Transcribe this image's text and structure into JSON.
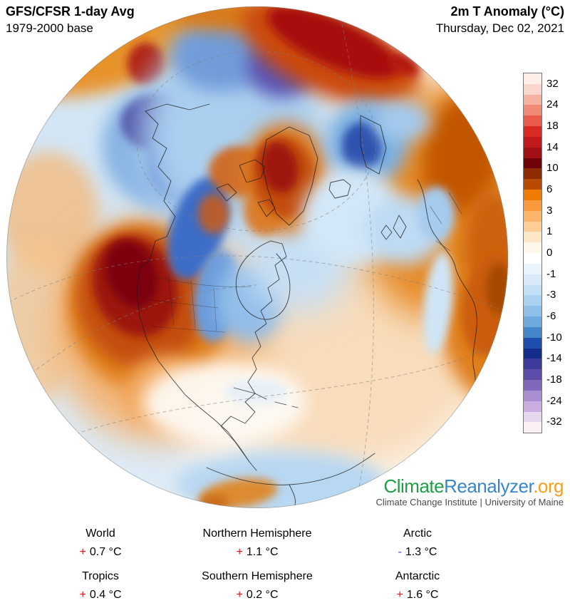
{
  "header": {
    "left_line1": "GFS/CFSR 1-day Avg",
    "left_line2": "1979-2000 base",
    "right_line1": "2m T Anomaly (°C)",
    "right_line2": "Thursday, Dec 02, 2021"
  },
  "colorbar": {
    "ticks": [
      "32",
      "24",
      "18",
      "14",
      "10",
      "6",
      "3",
      "1",
      "0",
      "-1",
      "-3",
      "-6",
      "-10",
      "-14",
      "-18",
      "-24",
      "-32"
    ],
    "colors": [
      "#fdeee8",
      "#f9d6cb",
      "#f5b2a3",
      "#f08a77",
      "#e85a49",
      "#d92b24",
      "#c21a1d",
      "#a01015",
      "#700309",
      "#8f2b03",
      "#b84a01",
      "#ef7b00",
      "#fb9a3c",
      "#fcb468",
      "#fdcd96",
      "#fde7c6",
      "#fef6e9",
      "#ffffff",
      "#eaf4fc",
      "#d8eafa",
      "#c3dff5",
      "#aad2f0",
      "#8fc0e9",
      "#6faade",
      "#4487cb",
      "#1e4fae",
      "#142c8c",
      "#3c3a9b",
      "#5d4da8",
      "#8168bb",
      "#a98fd0",
      "#c9ade1",
      "#e6d6ee",
      "#fbeff2"
    ]
  },
  "logo": {
    "part1": "Climate",
    "part2": "Reanalyzer",
    "part3": ".org",
    "color1": "#1f9e46",
    "color2": "#3a87c8",
    "color3": "#f6a01b",
    "subtitle": "Climate Change Institute | University of Maine"
  },
  "stats": {
    "items": [
      {
        "label": "World",
        "sign": "+",
        "value": "0.7 °C",
        "sign_color": "#e81111"
      },
      {
        "label": "Northern Hemisphere",
        "sign": "+",
        "value": "1.1 °C",
        "sign_color": "#e81111"
      },
      {
        "label": "Arctic",
        "sign": "-",
        "value": "1.3 °C",
        "sign_color": "#4f4fd8"
      },
      {
        "label": "Tropics",
        "sign": "+",
        "value": "0.4 °C",
        "sign_color": "#e81111"
      },
      {
        "label": "Southern Hemisphere",
        "sign": "+",
        "value": "0.2 °C",
        "sign_color": "#e81111"
      },
      {
        "label": "Antarctic",
        "sign": "+",
        "value": "1.6 °C",
        "sign_color": "#e81111"
      }
    ]
  },
  "chart_data": {
    "type": "heatmap",
    "title": "2m T Anomaly (°C) — GFS/CFSR 1-day Avg, 1979-2000 base",
    "date": "Thursday, Dec 02, 2021",
    "projection": "orthographic globe centered on North America / Arctic",
    "legend_ticks_degC": [
      32,
      24,
      18,
      14,
      10,
      6,
      3,
      1,
      0,
      -1,
      -3,
      -6,
      -10,
      -14,
      -18,
      -24,
      -32
    ],
    "regional_mean_anomalies_degC": {
      "World": 0.7,
      "Northern Hemisphere": 1.1,
      "Arctic": -1.3,
      "Tropics": 0.4,
      "Southern Hemisphere": 0.2,
      "Antarctic": 1.6
    }
  }
}
